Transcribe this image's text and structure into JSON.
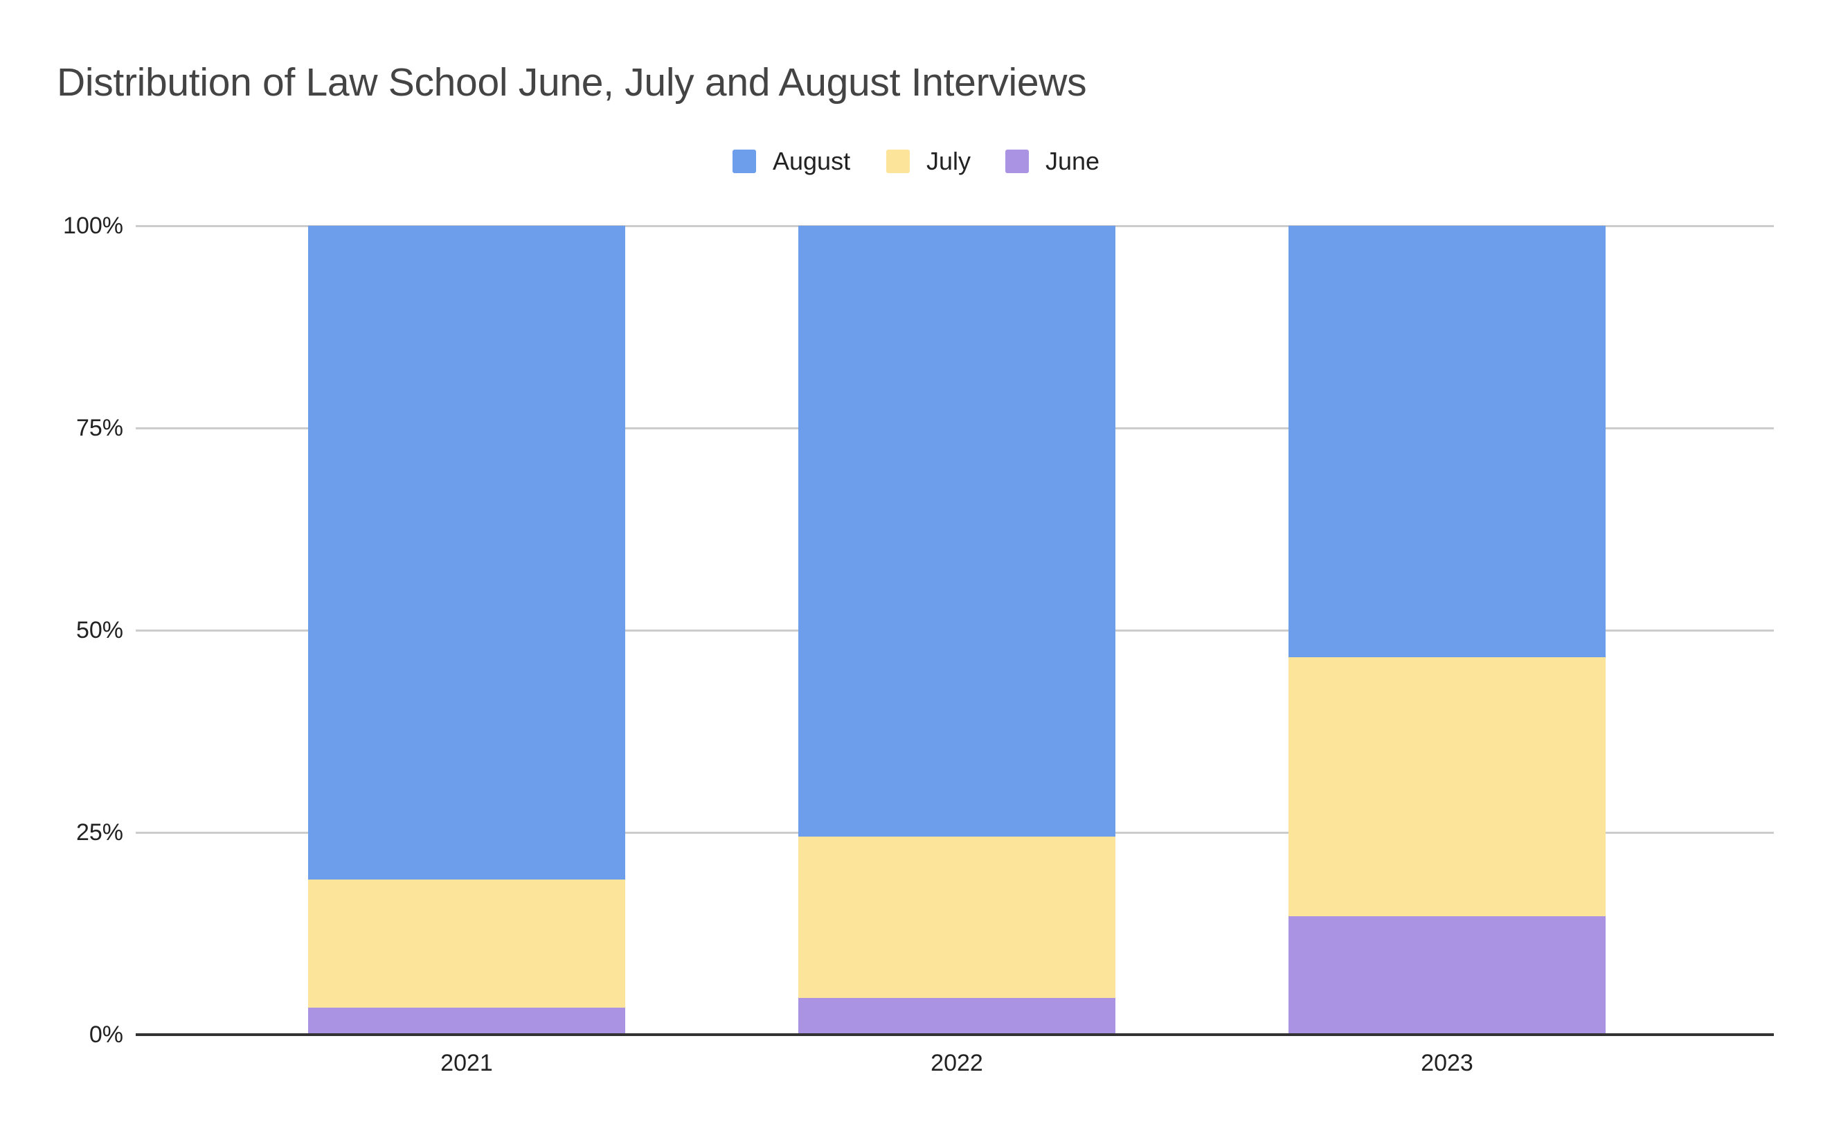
{
  "chart_data": {
    "type": "bar",
    "stacked": true,
    "percent_stacked": true,
    "title": "Distribution of Law School June, July and August Interviews",
    "xlabel": "",
    "ylabel": "",
    "categories": [
      "2021",
      "2022",
      "2023"
    ],
    "series": [
      {
        "name": "June",
        "color": "#AA93E3",
        "values": [
          3.3,
          4.5,
          14.6
        ]
      },
      {
        "name": "July",
        "color": "#FDE49B",
        "values": [
          15.9,
          20.0,
          32.1
        ]
      },
      {
        "name": "August",
        "color": "#6D9EEB",
        "values": [
          80.8,
          75.5,
          53.3
        ]
      }
    ],
    "legend": {
      "position": "top",
      "entries": [
        "August",
        "July",
        "June"
      ]
    },
    "yticks": [
      "0%",
      "25%",
      "50%",
      "75%",
      "100%"
    ],
    "ylim": [
      0,
      100
    ],
    "grid": true
  },
  "title": "Distribution of Law School June, July and August Interviews",
  "legend": [
    {
      "label": "August",
      "color": "#6D9EEB"
    },
    {
      "label": "July",
      "color": "#FDE49B"
    },
    {
      "label": "June",
      "color": "#AA93E3"
    }
  ],
  "yaxis": {
    "ticks": [
      "100%",
      "75%",
      "50%",
      "25%",
      "0%"
    ]
  },
  "xaxis": {
    "ticks": [
      "2021",
      "2022",
      "2023"
    ]
  }
}
